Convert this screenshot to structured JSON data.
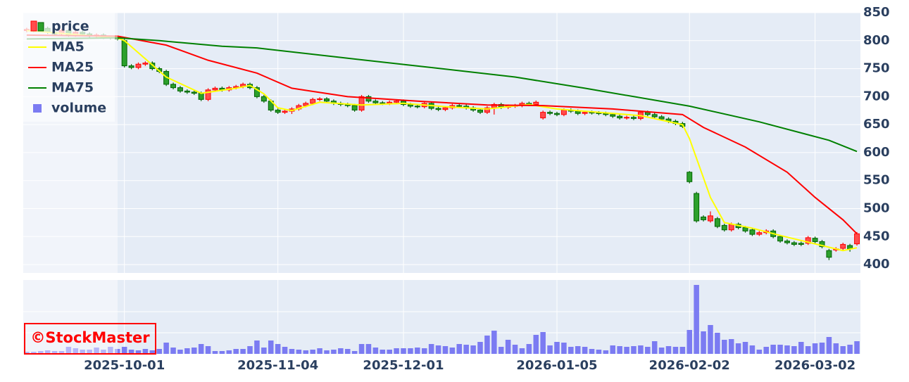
{
  "chart_data": {
    "type": "candlestick",
    "categories": [
      null,
      null,
      null,
      null,
      null,
      null,
      null,
      null,
      null,
      null,
      null,
      null,
      null,
      null,
      "2025-10-01",
      null,
      null,
      null,
      null,
      null,
      null,
      null,
      null,
      null,
      null,
      null,
      null,
      null,
      null,
      null,
      null,
      null,
      null,
      null,
      null,
      null,
      "2025-11-04",
      null,
      null,
      null,
      null,
      null,
      null,
      null,
      null,
      null,
      null,
      null,
      null,
      null,
      null,
      null,
      null,
      null,
      "2025-12-01",
      null,
      null,
      null,
      null,
      null,
      null,
      null,
      null,
      null,
      null,
      null,
      null,
      null,
      null,
      null,
      null,
      null,
      null,
      null,
      null,
      null,
      "2026-01-05",
      null,
      null,
      null,
      null,
      null,
      null,
      null,
      null,
      null,
      null,
      null,
      null,
      null,
      null,
      null,
      null,
      null,
      null,
      "2026-02-02",
      null,
      null,
      null,
      null,
      null,
      null,
      null,
      null,
      null,
      null,
      null,
      null,
      null,
      null,
      null,
      null,
      null,
      "2026-03-02",
      null,
      null,
      null,
      null,
      null,
      null
    ],
    "name": "price",
    "open": [
      818,
      820,
      818,
      822,
      815,
      812,
      818,
      810,
      815,
      812,
      808,
      810,
      806,
      805,
      800,
      755,
      752,
      758,
      760,
      750,
      745,
      722,
      716,
      710,
      708,
      706,
      695,
      712,
      715,
      712,
      716,
      718,
      722,
      716,
      700,
      692,
      676,
      672,
      674,
      678,
      684,
      688,
      695,
      696,
      692,
      688,
      686,
      684,
      676,
      700,
      692,
      689,
      688,
      690,
      692,
      686,
      683,
      682,
      688,
      679,
      677,
      680,
      684,
      683,
      680,
      676,
      672,
      680,
      686,
      681,
      683,
      684,
      688,
      686,
      662,
      672,
      670,
      668,
      676,
      674,
      670,
      672,
      671,
      670,
      668,
      665,
      662,
      663,
      661,
      672,
      668,
      664,
      660,
      656,
      652,
      565,
      527,
      485,
      478,
      482,
      470,
      462,
      472,
      466,
      462,
      454,
      457,
      460,
      450,
      442,
      439,
      438,
      438,
      447,
      441,
      425,
      426,
      429,
      434,
      437
    ],
    "high": [
      823,
      823,
      825,
      825,
      818,
      821,
      821,
      818,
      818,
      815,
      813,
      813,
      809,
      808,
      803,
      758,
      761,
      763,
      763,
      753,
      748,
      725,
      719,
      713,
      711,
      709,
      715,
      718,
      718,
      719,
      721,
      725,
      725,
      719,
      703,
      695,
      679,
      677,
      681,
      687,
      691,
      698,
      699,
      699,
      695,
      691,
      689,
      687,
      703,
      703,
      695,
      692,
      693,
      695,
      695,
      689,
      686,
      691,
      691,
      682,
      683,
      687,
      687,
      686,
      683,
      679,
      683,
      689,
      689,
      686,
      687,
      691,
      691,
      693,
      675,
      675,
      673,
      679,
      679,
      677,
      675,
      675,
      674,
      673,
      671,
      668,
      666,
      666,
      675,
      675,
      671,
      667,
      663,
      659,
      655,
      567,
      530,
      488,
      495,
      485,
      473,
      475,
      475,
      469,
      465,
      460,
      463,
      463,
      453,
      445,
      442,
      441,
      451,
      450,
      444,
      428,
      431,
      439,
      437,
      458
    ],
    "low": [
      815,
      815,
      815,
      812,
      809,
      809,
      807,
      807,
      809,
      805,
      805,
      803,
      802,
      800,
      752,
      749,
      749,
      755,
      747,
      742,
      719,
      713,
      707,
      705,
      703,
      692,
      692,
      709,
      709,
      709,
      713,
      715,
      713,
      697,
      689,
      673,
      669,
      669,
      669,
      675,
      681,
      685,
      692,
      689,
      685,
      683,
      681,
      673,
      673,
      689,
      686,
      685,
      685,
      687,
      683,
      680,
      679,
      679,
      676,
      674,
      674,
      677,
      680,
      677,
      673,
      669,
      669,
      668,
      678,
      678,
      680,
      681,
      683,
      683,
      659,
      667,
      665,
      665,
      671,
      667,
      667,
      668,
      667,
      665,
      662,
      659,
      659,
      658,
      658,
      665,
      661,
      657,
      653,
      649,
      644,
      545,
      475,
      477,
      475,
      465,
      459,
      459,
      463,
      457,
      451,
      451,
      454,
      447,
      439,
      436,
      433,
      433,
      435,
      438,
      429,
      408,
      423,
      426,
      423,
      434
    ],
    "close": [
      820,
      818,
      822,
      815,
      812,
      818,
      810,
      815,
      812,
      808,
      810,
      806,
      805,
      803,
      755,
      752,
      758,
      760,
      750,
      745,
      722,
      716,
      710,
      708,
      706,
      695,
      712,
      715,
      712,
      716,
      718,
      722,
      716,
      700,
      692,
      676,
      672,
      674,
      678,
      684,
      688,
      695,
      696,
      692,
      688,
      686,
      684,
      676,
      700,
      692,
      689,
      688,
      690,
      692,
      686,
      683,
      682,
      688,
      679,
      677,
      680,
      684,
      683,
      680,
      676,
      672,
      680,
      686,
      681,
      683,
      684,
      688,
      686,
      690,
      672,
      670,
      668,
      676,
      674,
      670,
      672,
      671,
      670,
      668,
      665,
      662,
      663,
      661,
      672,
      668,
      664,
      660,
      656,
      652,
      647,
      548,
      478,
      480,
      487,
      468,
      462,
      472,
      466,
      460,
      454,
      457,
      460,
      450,
      442,
      439,
      436,
      436,
      448,
      441,
      432,
      413,
      428,
      436,
      428,
      455
    ],
    "increasing": {
      "line": "#ff0000",
      "fill": "#ff4d4d"
    },
    "decreasing": {
      "line": "#006400",
      "fill": "#2ca02c"
    },
    "ylim": [
      385,
      850
    ],
    "yticks": [
      400,
      450,
      500,
      550,
      600,
      650,
      700,
      750,
      800,
      850
    ],
    "grid": true,
    "lines": [
      {
        "name": "MA5",
        "color": "#ffff00",
        "x": [
          0,
          13,
          14,
          20,
          25,
          30,
          32,
          34,
          36,
          38,
          42,
          48,
          54,
          60,
          66,
          72,
          76,
          82,
          88,
          94,
          95,
          96,
          98,
          100,
          104,
          108,
          112,
          117,
          119
        ],
        "values": [
          818,
          805,
          800,
          735,
          706,
          715,
          720,
          705,
          680,
          675,
          690,
          685,
          688,
          682,
          678,
          686,
          678,
          672,
          666,
          650,
          625,
          590,
          520,
          475,
          465,
          452,
          440,
          425,
          430
        ]
      },
      {
        "name": "MA25",
        "color": "#ff0000",
        "x": [
          0,
          13,
          20,
          26,
          33,
          38,
          46,
          56,
          66,
          74,
          84,
          94,
          97,
          103,
          109,
          113,
          117,
          119
        ],
        "values": [
          810,
          808,
          792,
          765,
          742,
          715,
          700,
          692,
          685,
          684,
          678,
          668,
          645,
          610,
          565,
          520,
          480,
          455
        ]
      },
      {
        "name": "MA75",
        "color": "#008000",
        "x": [
          0,
          13,
          19,
          28,
          33,
          45,
          58,
          70,
          80,
          95,
          105,
          115,
          119
        ],
        "values": [
          803,
          805,
          800,
          790,
          787,
          770,
          752,
          735,
          715,
          683,
          655,
          622,
          602
        ]
      }
    ],
    "volume": {
      "name": "volume",
      "color": "#7b7bf2",
      "ylim": [
        0,
        105
      ],
      "yticks": [
        30,
        60
      ],
      "values": [
        3,
        3,
        4,
        5,
        4,
        4,
        10,
        8,
        6,
        6,
        9,
        6,
        10,
        7,
        10,
        6,
        5,
        7,
        5,
        7,
        16,
        9,
        6,
        8,
        9,
        14,
        11,
        4,
        4,
        5,
        7,
        7,
        11,
        19,
        9,
        19,
        14,
        10,
        7,
        6,
        5,
        6,
        8,
        5,
        6,
        8,
        7,
        4,
        14,
        14,
        9,
        6,
        6,
        8,
        8,
        8,
        9,
        8,
        14,
        12,
        11,
        9,
        14,
        13,
        12,
        17,
        26,
        33,
        10,
        20,
        13,
        8,
        14,
        27,
        31,
        12,
        17,
        16,
        10,
        11,
        10,
        7,
        6,
        5,
        12,
        11,
        10,
        11,
        12,
        10,
        18,
        9,
        11,
        10,
        10,
        34,
        98,
        32,
        41,
        30,
        20,
        21,
        15,
        17,
        12,
        6,
        10,
        13,
        13,
        12,
        11,
        17,
        11,
        15,
        16,
        24,
        15,
        11,
        13,
        18
      ]
    },
    "watermark": "©StockMaster"
  }
}
